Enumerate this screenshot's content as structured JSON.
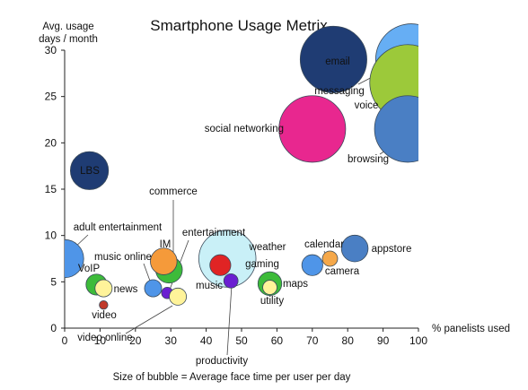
{
  "chart_data": {
    "type": "scatter",
    "title": "Smartphone Usage Metrix",
    "xlabel": "% panelists used",
    "ylabel_line1": "Avg. usage",
    "ylabel_line2": "days / month",
    "caption": "Size of bubble = Average face time per user per day",
    "xlim": [
      0,
      100
    ],
    "ylim": [
      0,
      30
    ],
    "xticks": [
      "0",
      "10",
      "20",
      "30",
      "40",
      "50",
      "60",
      "70",
      "80",
      "90",
      "100"
    ],
    "yticks": [
      "0",
      "5",
      "10",
      "15",
      "20",
      "25",
      "30"
    ],
    "grid": false,
    "points": [
      {
        "name": "email",
        "x": 76,
        "y": 29,
        "size": 7,
        "color": "#1f3c73"
      },
      {
        "name": "messaging",
        "x": 98,
        "y": 29,
        "size": 7.5,
        "color": "#66aef4"
      },
      {
        "name": "voice",
        "x": 97,
        "y": 26.5,
        "size": 8,
        "color": "#9cc93a"
      },
      {
        "name": "social networking",
        "x": 70,
        "y": 21.5,
        "size": 7,
        "color": "#e8278f"
      },
      {
        "name": "browsing",
        "x": 97,
        "y": 21.5,
        "size": 7,
        "color": "#4a7fc4"
      },
      {
        "name": "LBS",
        "x": 7,
        "y": 17,
        "size": 4,
        "color": "#1f3c73"
      },
      {
        "name": "adult entertainment",
        "x": 0,
        "y": 7.5,
        "size": 4,
        "color": "#4f95e8"
      },
      {
        "name": "commerce",
        "x": 29.5,
        "y": 6.3,
        "size": 2.8,
        "color": "#3dbb3a"
      },
      {
        "name": "IM",
        "x": 28,
        "y": 7.2,
        "size": 2.8,
        "color": "#f59a3a"
      },
      {
        "name": "music online",
        "x": 25,
        "y": 4.3,
        "size": 1.8,
        "color": "#4f95e8"
      },
      {
        "name": "entertainment",
        "x": 29,
        "y": 3.8,
        "size": 1.2,
        "color": "#6a1fd1"
      },
      {
        "name": "weather",
        "x": 47,
        "y": 8.1,
        "size": 1.8,
        "color": "#f5a84a"
      },
      {
        "name": "gaming",
        "x": 46,
        "y": 7.5,
        "size": 6,
        "color": "#c9f0f7"
      },
      {
        "name": "music",
        "x": 44,
        "y": 6.8,
        "size": 2.2,
        "color": "#e02424"
      },
      {
        "name": "productivity",
        "x": 47,
        "y": 5.1,
        "size": 1.5,
        "color": "#6a1fd1"
      },
      {
        "name": "VoIP",
        "x": 9,
        "y": 4.7,
        "size": 2.2,
        "color": "#3dbb3a"
      },
      {
        "name": "news",
        "x": 11,
        "y": 4.3,
        "size": 1.8,
        "color": "#fff39a"
      },
      {
        "name": "video",
        "x": 11,
        "y": 2.5,
        "size": 0.9,
        "color": "#c0392b"
      },
      {
        "name": "video online",
        "x": 32,
        "y": 3.4,
        "size": 1.8,
        "color": "#fff39a"
      },
      {
        "name": "maps",
        "x": 58,
        "y": 4.8,
        "size": 2.5,
        "color": "#3dbb3a"
      },
      {
        "name": "utility",
        "x": 58,
        "y": 4.4,
        "size": 1.5,
        "color": "#fff39a"
      },
      {
        "name": "calendar",
        "x": 75,
        "y": 7.5,
        "size": 1.6,
        "color": "#f5a84a"
      },
      {
        "name": "appstore",
        "x": 82,
        "y": 8.6,
        "size": 2.8,
        "color": "#4a7fc4"
      },
      {
        "name": "camera",
        "x": 70,
        "y": 6.8,
        "size": 2.2,
        "color": "#4f95e8"
      }
    ]
  }
}
